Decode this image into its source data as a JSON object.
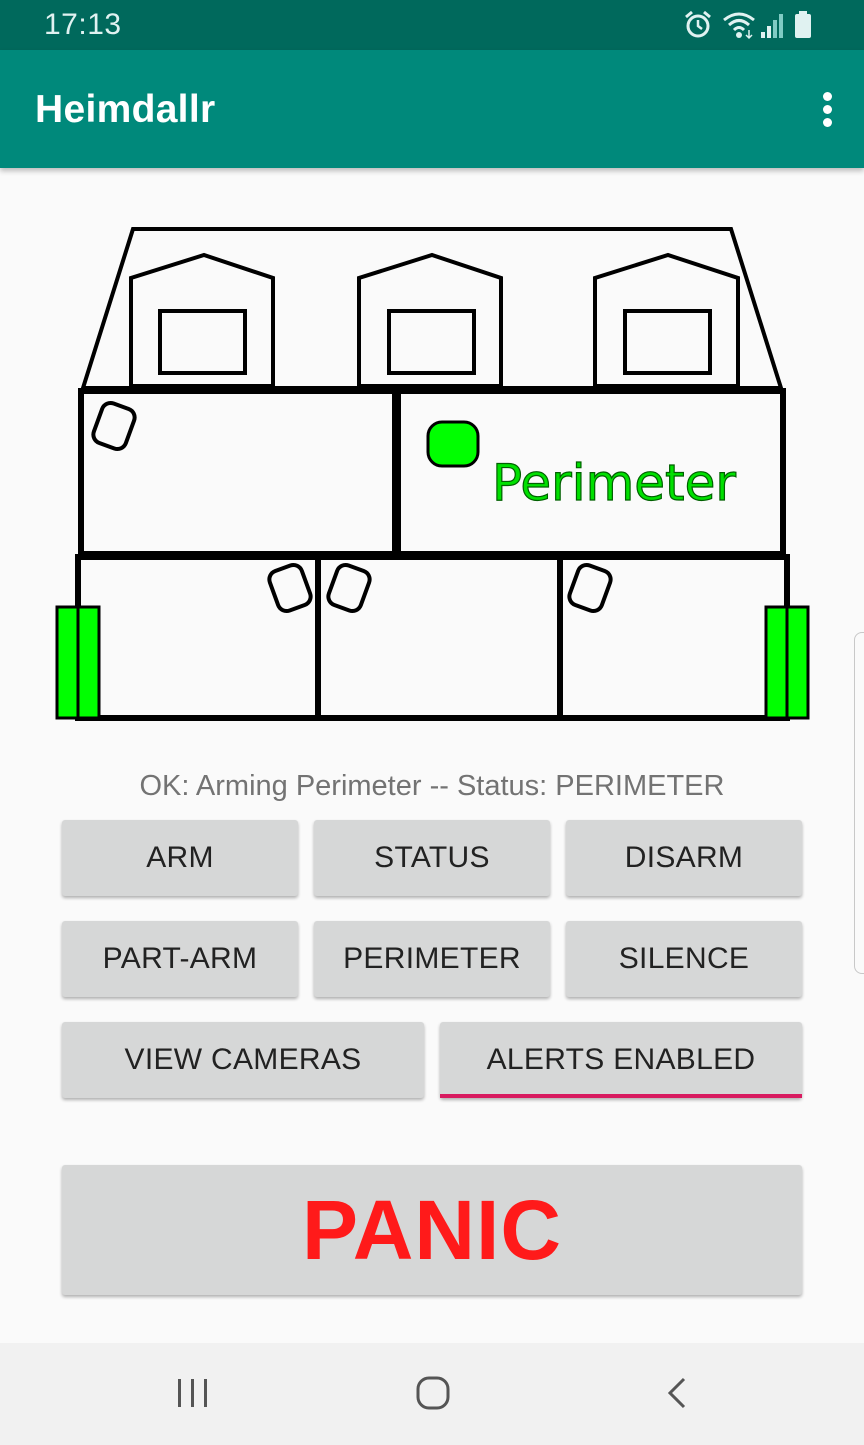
{
  "status_bar": {
    "time": "17:13",
    "icons": [
      "alarm-icon",
      "wifi-icon",
      "signal-icon",
      "battery-icon"
    ]
  },
  "app_bar": {
    "title": "Heimdallr",
    "menu_icon": "more-vert-icon"
  },
  "house_diagram": {
    "zone_label": "Perimeter",
    "colors": {
      "active_sensor": "#00ff00",
      "outline": "#000000",
      "label_fill": "#00e000"
    }
  },
  "status_message": "OK: Arming Perimeter -- Status: PERIMETER",
  "buttons": {
    "arm": "ARM",
    "status": "STATUS",
    "disarm": "DISARM",
    "part_arm": "PART-ARM",
    "perimeter": "PERIMETER",
    "silence": "SILENCE",
    "view_cameras": "VIEW CAMERAS",
    "alerts_enabled": "ALERTS ENABLED",
    "panic": "PANIC"
  },
  "colors": {
    "status_bar": "#00695c",
    "app_bar": "#00897b",
    "button": "#d6d7d7",
    "alerts_underline": "#d81b60",
    "panic_text": "#ff1a1a"
  },
  "nav_bar": {
    "icons": [
      "recent-apps-icon",
      "home-icon",
      "back-icon"
    ]
  }
}
